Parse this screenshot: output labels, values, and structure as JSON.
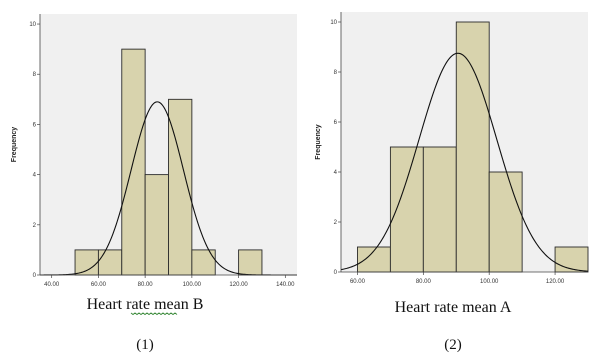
{
  "colors": {
    "plot_bg": "#f0f0f0",
    "bar_fill": "#d8d3ad",
    "bar_stroke": "#2b2b2b",
    "curve": "#111111",
    "squiggle": "#3a8a3a"
  },
  "chart_data": [
    {
      "type": "bar",
      "subtype": "histogram",
      "title": "",
      "xlabel": "Heart rate mean B",
      "ylabel": "Frequency",
      "panel_label": "(1)",
      "xlim": [
        35,
        145
      ],
      "ylim": [
        0,
        10.4
      ],
      "xticks": [
        40,
        60,
        80,
        100,
        120,
        140
      ],
      "xtick_labels": [
        "40.00",
        "60.00",
        "80.00",
        "100.00",
        "120.00",
        "140.00"
      ],
      "yticks": [
        0,
        2,
        4,
        6,
        8,
        10
      ],
      "ytick_labels": [
        "0",
        "2",
        "4",
        "6",
        "8",
        "10"
      ],
      "bins": [
        [
          50,
          60
        ],
        [
          60,
          70
        ],
        [
          70,
          80
        ],
        [
          80,
          90
        ],
        [
          90,
          100
        ],
        [
          100,
          110
        ],
        [
          110,
          120
        ],
        [
          120,
          130
        ]
      ],
      "values": [
        1,
        1,
        9,
        4,
        7,
        1,
        0,
        1
      ],
      "normal_curve": {
        "mean": 85.2,
        "sd": 11.2,
        "peak": 6.9
      }
    },
    {
      "type": "bar",
      "subtype": "histogram",
      "title": "",
      "xlabel": "Heart rate mean A",
      "ylabel": "Frequency",
      "panel_label": "(2)",
      "xlim": [
        55,
        130
      ],
      "ylim": [
        0,
        10.4
      ],
      "xticks": [
        60,
        80,
        100,
        120
      ],
      "xtick_labels": [
        "60.00",
        "80.00",
        "100.00",
        "120.00"
      ],
      "yticks": [
        0,
        2,
        4,
        6,
        8,
        10
      ],
      "ytick_labels": [
        "0",
        "2",
        "4",
        "6",
        "8",
        "10"
      ],
      "bins": [
        [
          60,
          70
        ],
        [
          70,
          80
        ],
        [
          80,
          90
        ],
        [
          90,
          100
        ],
        [
          100,
          110
        ],
        [
          110,
          120
        ],
        [
          120,
          130
        ]
      ],
      "values": [
        1,
        5,
        5,
        10,
        4,
        0,
        1
      ],
      "normal_curve": {
        "mean": 90.5,
        "sd": 11.8,
        "peak": 8.75
      }
    }
  ]
}
